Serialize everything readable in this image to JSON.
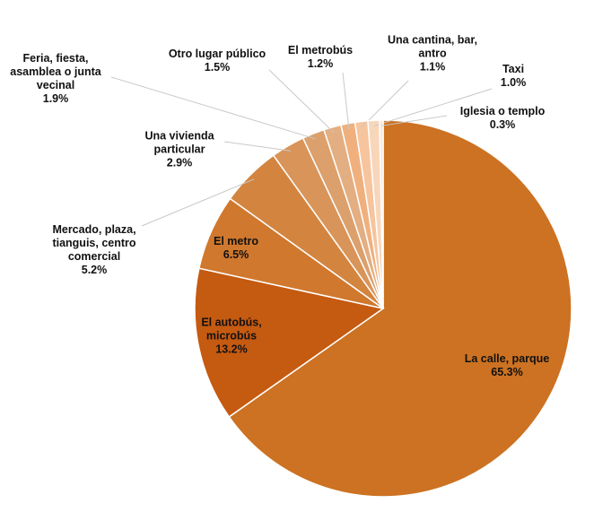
{
  "chart_data": {
    "type": "pie",
    "categories": [
      "La calle, parque",
      "El autobús, microbús",
      "El metro",
      "Mercado, plaza, tianguis, centro comercial",
      "Una vivienda particular",
      "Feria, fiesta, asamblea o junta vecinal",
      "Otro lugar público",
      "El metrobús",
      "Una cantina, bar, antro",
      "Taxi",
      "Iglesia o templo"
    ],
    "values": [
      65.3,
      13.2,
      6.5,
      5.2,
      2.9,
      1.9,
      1.5,
      1.2,
      1.1,
      1.0,
      0.3
    ],
    "value_labels": [
      "65.3%",
      "13.2%",
      "6.5%",
      "5.2%",
      "2.9%",
      "1.9%",
      "1.5%",
      "1.2%",
      "1.1%",
      "1.0%",
      "0.3%"
    ],
    "colors": [
      "#cc7222",
      "#c55a11",
      "#d0782e",
      "#d38540",
      "#d99459",
      "#dca06c",
      "#e3ae81",
      "#f0b07e",
      "#f6c49d",
      "#f8d6ba",
      "#fbe5d6"
    ]
  }
}
